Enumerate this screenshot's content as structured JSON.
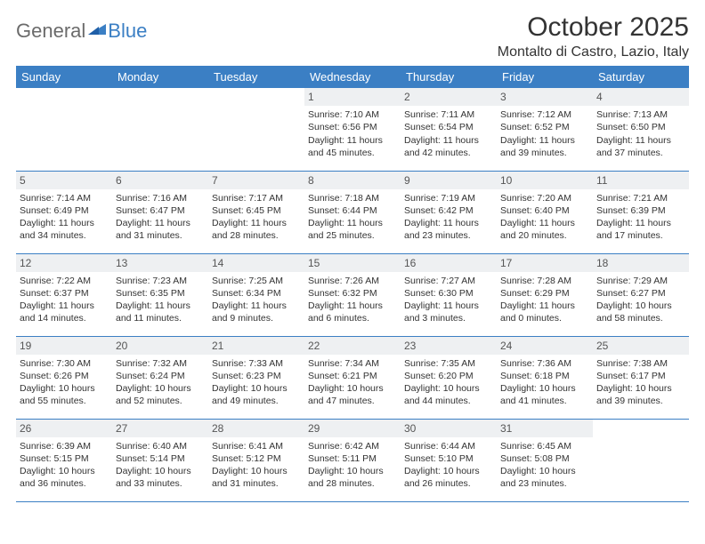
{
  "logo": {
    "general": "General",
    "blue": "Blue"
  },
  "title": "October 2025",
  "location": "Montalto di Castro, Lazio, Italy",
  "colors": {
    "accent": "#3b7fc4",
    "header_text": "#ffffff",
    "daynum_bg": "#eef0f2",
    "text": "#333333",
    "logo_gray": "#6b6b6b"
  },
  "weekdays": [
    "Sunday",
    "Monday",
    "Tuesday",
    "Wednesday",
    "Thursday",
    "Friday",
    "Saturday"
  ],
  "weeks": [
    [
      {
        "blank": true
      },
      {
        "blank": true
      },
      {
        "blank": true
      },
      {
        "day": "1",
        "sunrise": "7:10 AM",
        "sunset": "6:56 PM",
        "daylight": "11 hours and 45 minutes."
      },
      {
        "day": "2",
        "sunrise": "7:11 AM",
        "sunset": "6:54 PM",
        "daylight": "11 hours and 42 minutes."
      },
      {
        "day": "3",
        "sunrise": "7:12 AM",
        "sunset": "6:52 PM",
        "daylight": "11 hours and 39 minutes."
      },
      {
        "day": "4",
        "sunrise": "7:13 AM",
        "sunset": "6:50 PM",
        "daylight": "11 hours and 37 minutes."
      }
    ],
    [
      {
        "day": "5",
        "sunrise": "7:14 AM",
        "sunset": "6:49 PM",
        "daylight": "11 hours and 34 minutes."
      },
      {
        "day": "6",
        "sunrise": "7:16 AM",
        "sunset": "6:47 PM",
        "daylight": "11 hours and 31 minutes."
      },
      {
        "day": "7",
        "sunrise": "7:17 AM",
        "sunset": "6:45 PM",
        "daylight": "11 hours and 28 minutes."
      },
      {
        "day": "8",
        "sunrise": "7:18 AM",
        "sunset": "6:44 PM",
        "daylight": "11 hours and 25 minutes."
      },
      {
        "day": "9",
        "sunrise": "7:19 AM",
        "sunset": "6:42 PM",
        "daylight": "11 hours and 23 minutes."
      },
      {
        "day": "10",
        "sunrise": "7:20 AM",
        "sunset": "6:40 PM",
        "daylight": "11 hours and 20 minutes."
      },
      {
        "day": "11",
        "sunrise": "7:21 AM",
        "sunset": "6:39 PM",
        "daylight": "11 hours and 17 minutes."
      }
    ],
    [
      {
        "day": "12",
        "sunrise": "7:22 AM",
        "sunset": "6:37 PM",
        "daylight": "11 hours and 14 minutes."
      },
      {
        "day": "13",
        "sunrise": "7:23 AM",
        "sunset": "6:35 PM",
        "daylight": "11 hours and 11 minutes."
      },
      {
        "day": "14",
        "sunrise": "7:25 AM",
        "sunset": "6:34 PM",
        "daylight": "11 hours and 9 minutes."
      },
      {
        "day": "15",
        "sunrise": "7:26 AM",
        "sunset": "6:32 PM",
        "daylight": "11 hours and 6 minutes."
      },
      {
        "day": "16",
        "sunrise": "7:27 AM",
        "sunset": "6:30 PM",
        "daylight": "11 hours and 3 minutes."
      },
      {
        "day": "17",
        "sunrise": "7:28 AM",
        "sunset": "6:29 PM",
        "daylight": "11 hours and 0 minutes."
      },
      {
        "day": "18",
        "sunrise": "7:29 AM",
        "sunset": "6:27 PM",
        "daylight": "10 hours and 58 minutes."
      }
    ],
    [
      {
        "day": "19",
        "sunrise": "7:30 AM",
        "sunset": "6:26 PM",
        "daylight": "10 hours and 55 minutes."
      },
      {
        "day": "20",
        "sunrise": "7:32 AM",
        "sunset": "6:24 PM",
        "daylight": "10 hours and 52 minutes."
      },
      {
        "day": "21",
        "sunrise": "7:33 AM",
        "sunset": "6:23 PM",
        "daylight": "10 hours and 49 minutes."
      },
      {
        "day": "22",
        "sunrise": "7:34 AM",
        "sunset": "6:21 PM",
        "daylight": "10 hours and 47 minutes."
      },
      {
        "day": "23",
        "sunrise": "7:35 AM",
        "sunset": "6:20 PM",
        "daylight": "10 hours and 44 minutes."
      },
      {
        "day": "24",
        "sunrise": "7:36 AM",
        "sunset": "6:18 PM",
        "daylight": "10 hours and 41 minutes."
      },
      {
        "day": "25",
        "sunrise": "7:38 AM",
        "sunset": "6:17 PM",
        "daylight": "10 hours and 39 minutes."
      }
    ],
    [
      {
        "day": "26",
        "sunrise": "6:39 AM",
        "sunset": "5:15 PM",
        "daylight": "10 hours and 36 minutes."
      },
      {
        "day": "27",
        "sunrise": "6:40 AM",
        "sunset": "5:14 PM",
        "daylight": "10 hours and 33 minutes."
      },
      {
        "day": "28",
        "sunrise": "6:41 AM",
        "sunset": "5:12 PM",
        "daylight": "10 hours and 31 minutes."
      },
      {
        "day": "29",
        "sunrise": "6:42 AM",
        "sunset": "5:11 PM",
        "daylight": "10 hours and 28 minutes."
      },
      {
        "day": "30",
        "sunrise": "6:44 AM",
        "sunset": "5:10 PM",
        "daylight": "10 hours and 26 minutes."
      },
      {
        "day": "31",
        "sunrise": "6:45 AM",
        "sunset": "5:08 PM",
        "daylight": "10 hours and 23 minutes."
      },
      {
        "blank": true
      }
    ]
  ]
}
